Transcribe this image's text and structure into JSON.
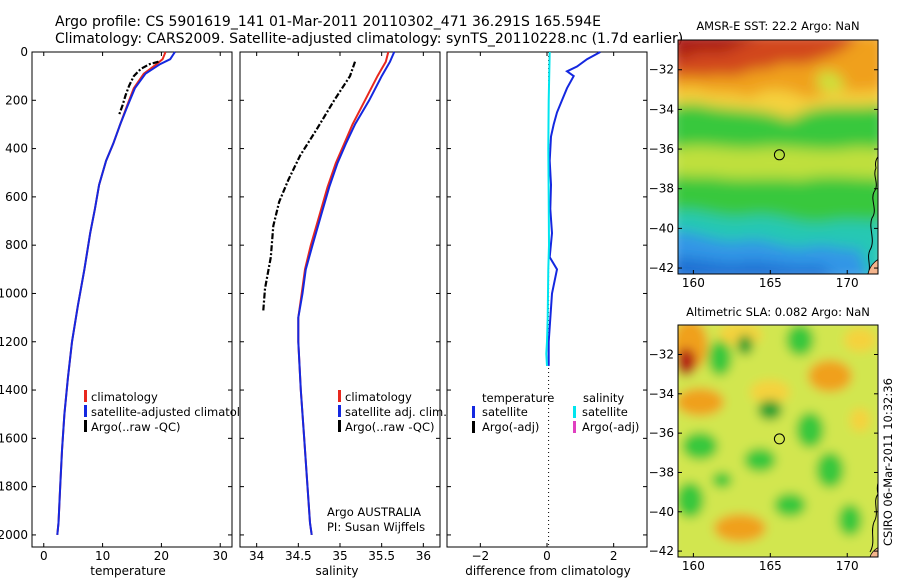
{
  "header": {
    "line1": "Argo profile: CS 5901619_141 01-Mar-2011 20110302_471 36.291S 165.594E",
    "line2": "Climatology: CARS2009. Satellite-adjusted climatology: synTS_20110228.nc (1.7d earlier)"
  },
  "credit": "CSIRO 06-Mar-2011 10:32:36",
  "colors": {
    "climatology": "#e8281e",
    "satellite": "#1428e0",
    "argo": "#000000",
    "sal_satellite": "#00e5ee",
    "sal_argo": "#e040c0"
  },
  "chart_data": [
    {
      "type": "line",
      "id": "temperature",
      "xlabel": "temperature",
      "ylabel": "",
      "xlim": [
        -2,
        32
      ],
      "ylim": [
        2050,
        0
      ],
      "xticks": [
        0,
        10,
        20,
        30
      ],
      "yticks": [
        0,
        200,
        400,
        600,
        800,
        1000,
        1200,
        1400,
        1600,
        1800,
        2000
      ],
      "legend": {
        "placement": "lower-right",
        "items": [
          {
            "label": "climatology",
            "color_key": "climatology"
          },
          {
            "label": "satellite-adjusted climatology",
            "color_key": "satellite"
          },
          {
            "label": "Argo(..raw -QC)",
            "color_key": "argo"
          }
        ]
      },
      "series": [
        {
          "name": "climatology",
          "color_key": "climatology",
          "style": "solid",
          "x": [
            20.7,
            20.2,
            19.2,
            17.0,
            15.3,
            14.2,
            13.0,
            11.8,
            10.6,
            9.4,
            8.7,
            7.9,
            6.9,
            5.8,
            4.8,
            4.1,
            3.5,
            3.1,
            2.8,
            2.5,
            2.3
          ],
          "y": [
            0,
            30,
            50,
            90,
            150,
            220,
            300,
            380,
            450,
            550,
            650,
            750,
            900,
            1050,
            1200,
            1350,
            1500,
            1650,
            1800,
            1950,
            2000
          ]
        },
        {
          "name": "satellite-adjusted climatology",
          "color_key": "satellite",
          "style": "solid",
          "x": [
            22.3,
            21.5,
            19.8,
            17.3,
            15.5,
            14.3,
            13.0,
            11.8,
            10.6,
            9.4,
            8.7,
            7.9,
            6.9,
            5.8,
            4.8,
            4.1,
            3.5,
            3.1,
            2.8,
            2.5,
            2.3
          ],
          "y": [
            0,
            30,
            50,
            90,
            150,
            220,
            300,
            380,
            450,
            550,
            650,
            750,
            900,
            1050,
            1200,
            1350,
            1500,
            1650,
            1800,
            1950,
            2000
          ]
        },
        {
          "name": "Argo(..raw -QC)",
          "color_key": "argo",
          "style": "dashdot",
          "x": [
            19.5,
            18.0,
            16.5,
            15.3,
            14.5,
            13.9,
            13.4,
            12.8
          ],
          "y": [
            40,
            50,
            70,
            100,
            140,
            180,
            220,
            260
          ]
        }
      ]
    },
    {
      "type": "line",
      "id": "salinity",
      "xlabel": "salinity",
      "xlim": [
        33.8,
        36.2
      ],
      "ylim": [
        2050,
        0
      ],
      "xticks": [
        34,
        34.5,
        35,
        35.5,
        36
      ],
      "legend": {
        "placement": "lower-right",
        "items": [
          {
            "label": "climatology",
            "color_key": "climatology"
          },
          {
            "label": "satellite adj. clim.",
            "color_key": "satellite"
          },
          {
            "label": "Argo(..raw -QC)",
            "color_key": "argo"
          }
        ]
      },
      "annotation": [
        "Argo AUSTRALIA",
        "PI: Susan Wijffels"
      ],
      "series": [
        {
          "name": "climatology",
          "color_key": "climatology",
          "style": "solid",
          "x": [
            35.58,
            35.55,
            35.45,
            35.3,
            35.15,
            35.05,
            34.95,
            34.85,
            34.75,
            34.65,
            34.58,
            34.54,
            34.5,
            34.5,
            34.53,
            34.57,
            34.61,
            34.64,
            34.66
          ],
          "y": [
            0,
            40,
            100,
            200,
            300,
            380,
            460,
            560,
            680,
            800,
            900,
            1000,
            1100,
            1200,
            1400,
            1600,
            1800,
            1950,
            2000
          ]
        },
        {
          "name": "satellite adj. clim.",
          "color_key": "satellite",
          "style": "solid",
          "x": [
            35.65,
            35.6,
            35.5,
            35.35,
            35.18,
            35.07,
            34.97,
            34.87,
            34.77,
            34.67,
            34.59,
            34.55,
            34.5,
            34.5,
            34.53,
            34.57,
            34.61,
            34.64,
            34.66
          ],
          "y": [
            0,
            40,
            100,
            200,
            300,
            380,
            460,
            560,
            680,
            800,
            900,
            1000,
            1100,
            1200,
            1400,
            1600,
            1800,
            1950,
            2000
          ]
        },
        {
          "name": "Argo(..raw -QC)",
          "color_key": "argo",
          "style": "dashdot",
          "x": [
            35.18,
            35.12,
            34.93,
            34.72,
            34.52,
            34.38,
            34.27,
            34.2,
            34.17,
            34.1,
            34.08
          ],
          "y": [
            40,
            100,
            200,
            320,
            430,
            530,
            620,
            720,
            850,
            980,
            1070
          ]
        }
      ]
    },
    {
      "type": "line",
      "id": "difference",
      "xlabel": "difference from climatology",
      "xlim": [
        -3,
        3
      ],
      "ylim": [
        2050,
        0
      ],
      "xticks": [
        -2,
        0,
        2
      ],
      "legend": {
        "placement": "lower-center",
        "columns": [
          {
            "header": "temperature",
            "items": [
              {
                "label": "satellite",
                "color_key": "satellite"
              },
              {
                "label": "Argo(-adj)",
                "color_key": "argo"
              }
            ]
          },
          {
            "header": "salinity",
            "items": [
              {
                "label": "satellite",
                "color_key": "sal_satellite"
              },
              {
                "label": "Argo(-adj)",
                "color_key": "sal_argo"
              }
            ]
          }
        ]
      },
      "series": [
        {
          "name": "temperature satellite",
          "color_key": "satellite",
          "style": "solid",
          "x": [
            1.6,
            1.2,
            0.9,
            0.6,
            0.8,
            0.6,
            0.45,
            0.3,
            0.2,
            0.12,
            0.08,
            0.12,
            0.1,
            0.15,
            0.08,
            0.3,
            0.15,
            0.05,
            0.05
          ],
          "y": [
            0,
            30,
            60,
            80,
            100,
            150,
            200,
            250,
            300,
            350,
            450,
            550,
            650,
            750,
            850,
            900,
            1000,
            1200,
            1300
          ]
        },
        {
          "name": "salinity satellite",
          "color_key": "sal_satellite",
          "style": "solid",
          "x": [
            0.08,
            0.05,
            0.04,
            0.05,
            0.06,
            0.04,
            0.03,
            0.02,
            0.0,
            -0.02,
            0.0
          ],
          "y": [
            0,
            200,
            400,
            600,
            800,
            900,
            1000,
            1100,
            1200,
            1250,
            1300
          ]
        }
      ]
    },
    {
      "type": "heatmap",
      "id": "sst_map",
      "title": "AMSR-E SST: 22.2 Argo: NaN",
      "xlim": [
        159,
        172
      ],
      "ylim": [
        -42.3,
        -30.5
      ],
      "xticks": [
        160,
        165,
        170
      ],
      "yticks": [
        -32,
        -34,
        -36,
        -38,
        -40,
        -42
      ],
      "marker": {
        "lon": 165.594,
        "lat": -36.291
      }
    },
    {
      "type": "heatmap",
      "id": "sla_map",
      "title": "Altimetric SLA: 0.082 Argo: NaN",
      "xlim": [
        159,
        172
      ],
      "ylim": [
        -42.3,
        -30.5
      ],
      "xticks": [
        160,
        165,
        170
      ],
      "yticks": [
        -32,
        -34,
        -36,
        -38,
        -40,
        -42
      ],
      "marker": {
        "lon": 165.594,
        "lat": -36.291
      }
    }
  ]
}
